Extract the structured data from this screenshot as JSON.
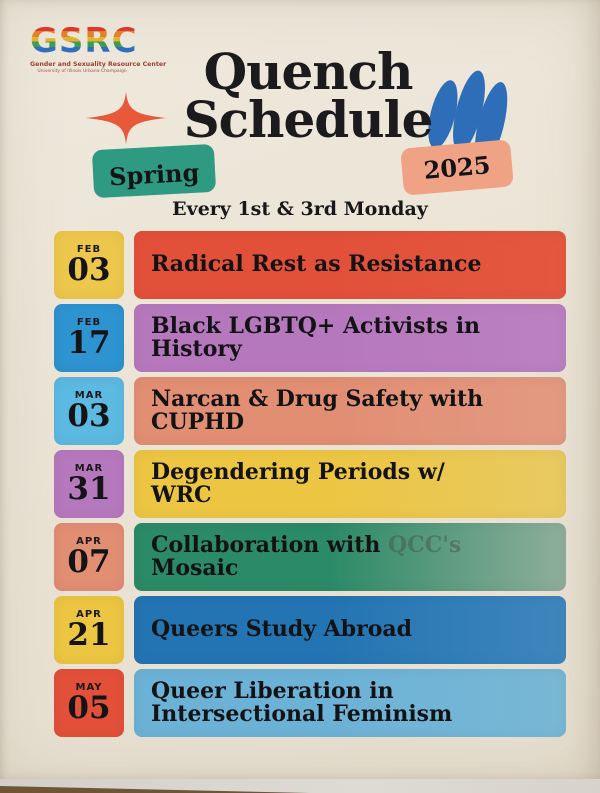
{
  "logo": {
    "acronym": "GSRC",
    "name": "Gender and Sexuality Resource Center",
    "affiliation": "University of Illinois Urbana-Champaign"
  },
  "title": {
    "line1": "Quench",
    "line2": "Schedule"
  },
  "badges": {
    "season": "Spring",
    "year": "2025"
  },
  "tagline": "Every 1st & 3rd Monday",
  "icons": {
    "sparkle": "sparkle-icon",
    "blob": "blue-blob-icon"
  },
  "colors": {
    "poster_bg": "#eae3d5",
    "sparkle": "#e8593a",
    "blob": "#2e6db8",
    "season_badge": "#2f9a82",
    "year_badge": "#f0a285",
    "heading_text": "#1b1b1d"
  },
  "events": [
    {
      "month": "FEB",
      "day": "03",
      "title": "Radical Rest as Resistance",
      "date_bg": "#edc74b",
      "bar_bg": "#e2503a",
      "bar_bg2": "#e4583f"
    },
    {
      "month": "FEB",
      "day": "17",
      "title": "Black LGBTQ+ Activists in\nHistory",
      "date_bg": "#2d93d1",
      "bar_bg": "#b678bd",
      "bar_bg2": "#ba81c1"
    },
    {
      "month": "MAR",
      "day": "03",
      "title": "Narcan & Drug Safety with\nCUPHD",
      "date_bg": "#5cb9e1",
      "bar_bg": "#e18e73",
      "bar_bg2": "#e39a81"
    },
    {
      "month": "MAR",
      "day": "31",
      "title": "Degendering Periods w/\nWRC",
      "date_bg": "#b678bd",
      "bar_bg": "#ecc542",
      "bar_bg2": "#e8ca61"
    },
    {
      "month": "APR",
      "day": "07",
      "title": "Collaboration with QCC's\nMosaic",
      "faded_text": "QCC's",
      "date_bg": "#e18e73",
      "bar_bg": "#2b8a67",
      "bar_bg2": "#8fae9a"
    },
    {
      "month": "APR",
      "day": "21",
      "title": "Queers Study Abroad",
      "date_bg": "#ecc542",
      "bar_bg": "#2374b2",
      "bar_bg2": "#3f86bd"
    },
    {
      "month": "MAY",
      "day": "05",
      "title": "Queer Liberation in\nIntersectional Feminism",
      "date_bg": "#e2503a",
      "bar_bg": "#6cb2d6",
      "bar_bg2": "#79b7d5"
    }
  ]
}
